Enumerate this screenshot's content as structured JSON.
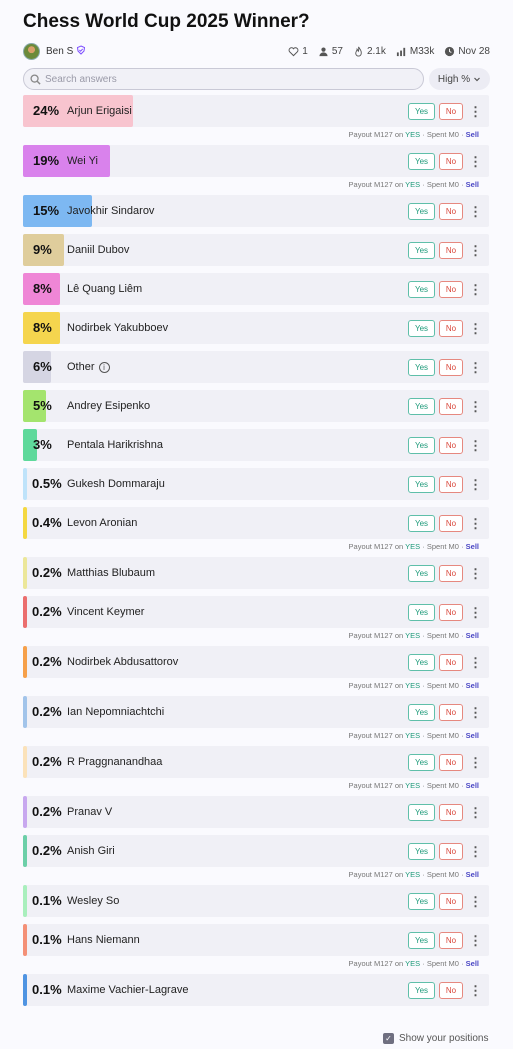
{
  "title": "Chess World Cup 2025 Winner?",
  "creator": {
    "name": "Ben S"
  },
  "stats": {
    "likes": "1",
    "traders": "57",
    "views": "2.1k",
    "volume": "M33k",
    "date": "Nov 28"
  },
  "search": {
    "placeholder": "Search answers"
  },
  "sort": {
    "label": "High %"
  },
  "buttons": {
    "yes": "Yes",
    "no": "No"
  },
  "payout": {
    "prefix": "Payout",
    "amount": "M127",
    "on": "on",
    "outcome": "YES",
    "sep": "·",
    "spent_label": "Spent",
    "spent": "M0",
    "sell": "Sell"
  },
  "answers": [
    {
      "percent": "24%",
      "name": "Arjun Erigaisi",
      "prob": 0.24,
      "color": "#f8c4cf",
      "payout": true
    },
    {
      "percent": "19%",
      "name": "Wei Yi",
      "prob": 0.19,
      "color": "#d982ec",
      "payout": true
    },
    {
      "percent": "15%",
      "name": "Javokhir Sindarov",
      "prob": 0.15,
      "color": "#7db8f2",
      "payout": false
    },
    {
      "percent": "9%",
      "name": "Daniil Dubov",
      "prob": 0.09,
      "color": "#dfcd9c",
      "payout": false
    },
    {
      "percent": "8%",
      "name": "Lê Quang Liêm",
      "prob": 0.08,
      "color": "#ef86d6",
      "payout": false
    },
    {
      "percent": "8%",
      "name": "Nodirbek Yakubboev",
      "prob": 0.08,
      "color": "#f5d54e",
      "payout": false
    },
    {
      "percent": "6%",
      "name": "Other",
      "prob": 0.06,
      "color": "#d5d5e3",
      "payout": false,
      "info": true
    },
    {
      "percent": "5%",
      "name": "Andrey Esipenko",
      "prob": 0.05,
      "color": "#a4e46e",
      "payout": false
    },
    {
      "percent": "3%",
      "name": "Pentala Harikrishna",
      "prob": 0.03,
      "color": "#5ed99b",
      "payout": false
    },
    {
      "percent": "0.5%",
      "name": "Gukesh Dommaraju",
      "prob": 0.005,
      "color": "#bfe3fa",
      "payout": false
    },
    {
      "percent": "0.4%",
      "name": "Levon Aronian",
      "prob": 0.004,
      "color": "#f4d842",
      "payout": true
    },
    {
      "percent": "0.2%",
      "name": "Matthias Blubaum",
      "prob": 0.002,
      "color": "#ece79a",
      "payout": false
    },
    {
      "percent": "0.2%",
      "name": "Vincent Keymer",
      "prob": 0.002,
      "color": "#eb6e6e",
      "payout": true
    },
    {
      "percent": "0.2%",
      "name": "Nodirbek Abdusattorov",
      "prob": 0.002,
      "color": "#f6a04a",
      "payout": true
    },
    {
      "percent": "0.2%",
      "name": "Ian Nepomniachtchi",
      "prob": 0.002,
      "color": "#a2c4ea",
      "payout": true
    },
    {
      "percent": "0.2%",
      "name": "R Praggnanandhaa",
      "prob": 0.002,
      "color": "#fbe2ba",
      "payout": true
    },
    {
      "percent": "0.2%",
      "name": "Pranav V",
      "prob": 0.002,
      "color": "#c8a8ef",
      "payout": false
    },
    {
      "percent": "0.2%",
      "name": "Anish Giri",
      "prob": 0.002,
      "color": "#6ccfa8",
      "payout": true
    },
    {
      "percent": "0.1%",
      "name": "Wesley So",
      "prob": 0.001,
      "color": "#a9efbd",
      "payout": false
    },
    {
      "percent": "0.1%",
      "name": "Hans Niemann",
      "prob": 0.001,
      "color": "#f49077",
      "payout": true
    },
    {
      "percent": "0.1%",
      "name": "Maxime Vachier-Lagrave",
      "prob": 0.001,
      "color": "#4f94e2",
      "payout": false
    }
  ],
  "footer": {
    "show_positions": "Show your positions",
    "checked": true
  }
}
